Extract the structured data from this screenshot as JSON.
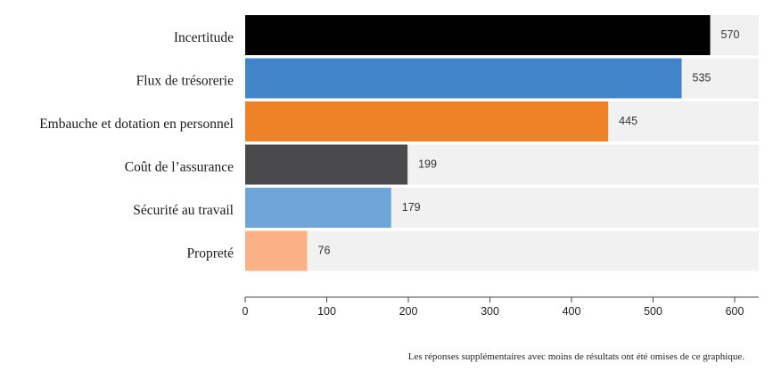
{
  "chart_data": {
    "type": "bar",
    "orientation": "horizontal",
    "categories": [
      "Incertitude",
      "Flux de trésorerie",
      "Embauche et dotation en personnel",
      "Coût de l’assurance",
      "Sécurité au travail",
      "Propreté"
    ],
    "values": [
      570,
      535,
      445,
      199,
      179,
      76
    ],
    "value_labels": [
      "570",
      "535",
      "445",
      "199",
      "179",
      "76"
    ],
    "bar_colors": [
      "#000000",
      "#4184c8",
      "#ef8126",
      "#4a4a4d",
      "#6ea6da",
      "#fbb186"
    ],
    "background_track_color": "#f1f1f1",
    "xlim": [
      0,
      630
    ],
    "xticks": [
      0,
      100,
      200,
      300,
      400,
      500,
      600
    ],
    "xtick_labels": [
      "0",
      "100",
      "200",
      "300",
      "400",
      "500",
      "600"
    ],
    "grid": false,
    "legend": "none"
  },
  "footnote": "Les réponses supplémentaires avec moins de résultats ont été omises de ce graphique."
}
